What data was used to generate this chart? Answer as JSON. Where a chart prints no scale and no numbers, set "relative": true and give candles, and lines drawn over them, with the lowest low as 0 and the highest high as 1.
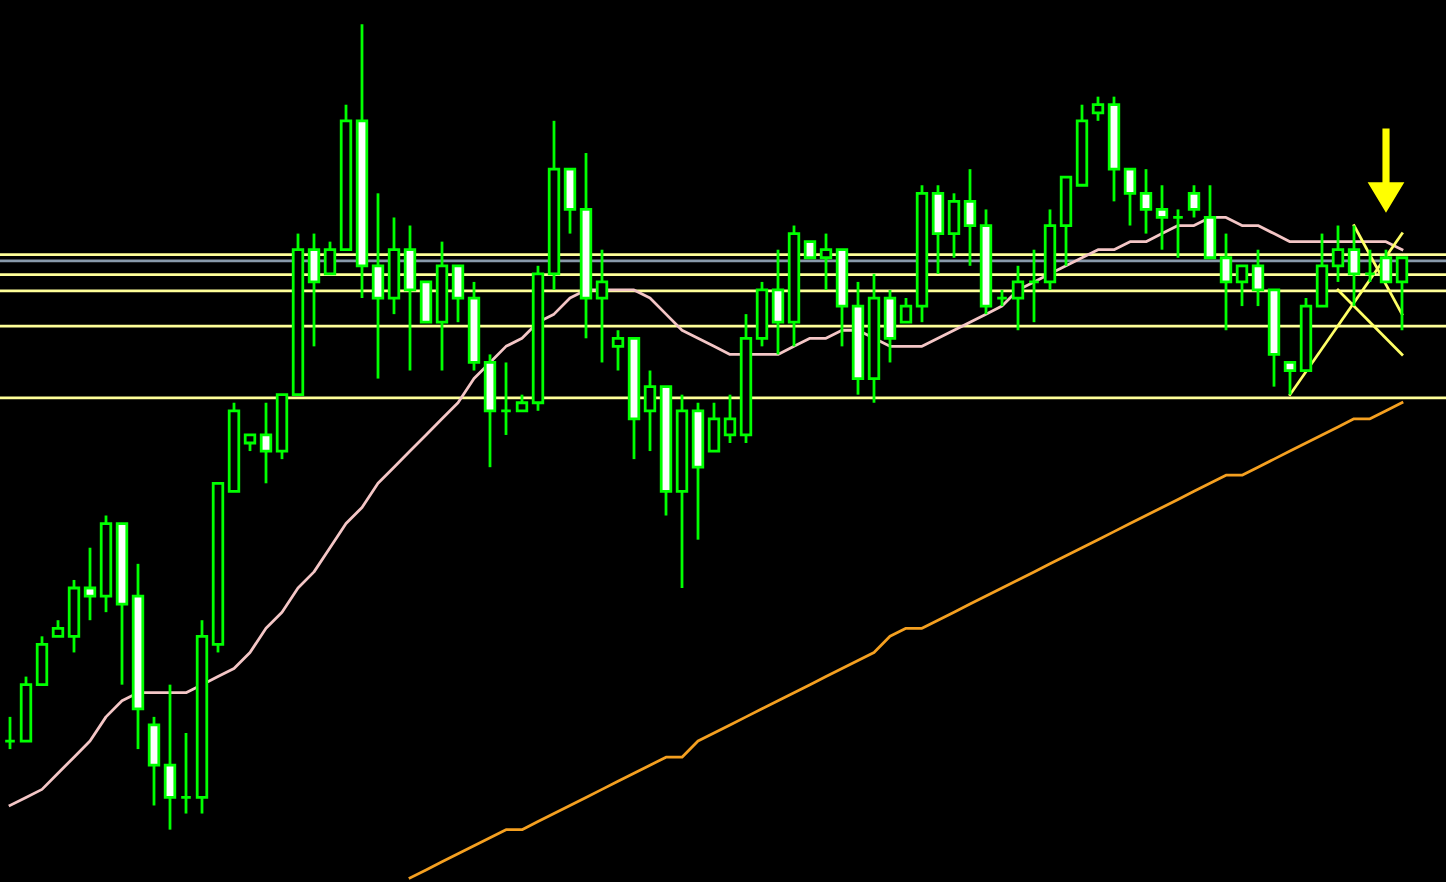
{
  "chart_data": {
    "type": "candlestick",
    "relative": true,
    "color": "#00ff00",
    "grid": false,
    "legend": false,
    "categories": [
      null,
      null,
      null,
      null,
      null,
      null,
      null,
      null,
      null,
      null,
      null,
      null,
      null,
      null,
      null,
      null,
      null,
      null,
      null,
      null,
      null,
      null,
      null,
      null,
      null,
      null,
      null,
      null,
      null,
      null,
      null,
      null,
      null,
      null,
      null,
      null,
      null,
      null,
      null,
      null,
      null,
      null,
      null,
      null,
      null,
      null,
      null,
      null,
      null,
      null,
      null,
      null,
      null,
      null,
      null,
      null,
      null,
      null,
      null,
      null,
      null,
      null,
      null,
      null,
      null,
      null,
      null,
      null,
      null,
      null,
      null,
      null,
      null,
      null,
      null,
      null,
      null,
      null,
      null,
      null,
      null,
      null,
      null,
      null,
      null,
      null,
      null,
      null
    ],
    "ohlc": [
      [
        0.11,
        0.14,
        0.1,
        0.11
      ],
      [
        0.11,
        0.19,
        0.11,
        0.18
      ],
      [
        0.18,
        0.24,
        0.18,
        0.23
      ],
      [
        0.24,
        0.26,
        0.24,
        0.25
      ],
      [
        0.24,
        0.31,
        0.22,
        0.3
      ],
      [
        0.3,
        0.35,
        0.26,
        0.29
      ],
      [
        0.29,
        0.39,
        0.27,
        0.38
      ],
      [
        0.38,
        0.38,
        0.18,
        0.28
      ],
      [
        0.29,
        0.33,
        0.1,
        0.15
      ],
      [
        0.13,
        0.14,
        0.03,
        0.08
      ],
      [
        0.08,
        0.18,
        0,
        0.04
      ],
      [
        0.04,
        0.12,
        0.02,
        0.04
      ],
      [
        0.04,
        0.26,
        0.02,
        0.24
      ],
      [
        0.23,
        0.43,
        0.22,
        0.43
      ],
      [
        0.42,
        0.53,
        0.42,
        0.52
      ],
      [
        0.48,
        0.49,
        0.47,
        0.49
      ],
      [
        0.49,
        0.53,
        0.43,
        0.47
      ],
      [
        0.47,
        0.54,
        0.46,
        0.54
      ],
      [
        0.54,
        0.74,
        0.54,
        0.72
      ],
      [
        0.72,
        0.74,
        0.6,
        0.68
      ],
      [
        0.69,
        0.73,
        0.69,
        0.72
      ],
      [
        0.72,
        0.9,
        0.72,
        0.88
      ],
      [
        0.88,
        1,
        0.66,
        0.7
      ],
      [
        0.7,
        0.79,
        0.56,
        0.66
      ],
      [
        0.66,
        0.76,
        0.64,
        0.72
      ],
      [
        0.72,
        0.75,
        0.57,
        0.67
      ],
      [
        0.68,
        0.68,
        0.63,
        0.63
      ],
      [
        0.63,
        0.73,
        0.57,
        0.7
      ],
      [
        0.7,
        0.7,
        0.63,
        0.66
      ],
      [
        0.66,
        0.68,
        0.57,
        0.58
      ],
      [
        0.58,
        0.59,
        0.45,
        0.52
      ],
      [
        0.52,
        0.58,
        0.49,
        0.52
      ],
      [
        0.52,
        0.54,
        0.52,
        0.53
      ],
      [
        0.53,
        0.7,
        0.52,
        0.69
      ],
      [
        0.69,
        0.88,
        0.67,
        0.82
      ],
      [
        0.82,
        0.82,
        0.74,
        0.77
      ],
      [
        0.77,
        0.84,
        0.61,
        0.66
      ],
      [
        0.66,
        0.72,
        0.58,
        0.68
      ],
      [
        0.6,
        0.62,
        0.57,
        0.61
      ],
      [
        0.61,
        0.61,
        0.46,
        0.51
      ],
      [
        0.52,
        0.57,
        0.47,
        0.55
      ],
      [
        0.55,
        0.55,
        0.39,
        0.42
      ],
      [
        0.42,
        0.54,
        0.3,
        0.52
      ],
      [
        0.52,
        0.53,
        0.36,
        0.45
      ],
      [
        0.47,
        0.53,
        0.47,
        0.51
      ],
      [
        0.49,
        0.54,
        0.48,
        0.51
      ],
      [
        0.49,
        0.64,
        0.48,
        0.61
      ],
      [
        0.61,
        0.68,
        0.6,
        0.67
      ],
      [
        0.67,
        0.72,
        0.59,
        0.63
      ],
      [
        0.63,
        0.75,
        0.6,
        0.74
      ],
      [
        0.73,
        0.73,
        0.71,
        0.71
      ],
      [
        0.71,
        0.74,
        0.67,
        0.72
      ],
      [
        0.72,
        0.72,
        0.6,
        0.65
      ],
      [
        0.65,
        0.68,
        0.54,
        0.56
      ],
      [
        0.56,
        0.69,
        0.53,
        0.66
      ],
      [
        0.66,
        0.67,
        0.58,
        0.61
      ],
      [
        0.63,
        0.66,
        0.63,
        0.65
      ],
      [
        0.65,
        0.8,
        0.63,
        0.79
      ],
      [
        0.79,
        0.8,
        0.69,
        0.74
      ],
      [
        0.74,
        0.79,
        0.71,
        0.78
      ],
      [
        0.78,
        0.82,
        0.7,
        0.75
      ],
      [
        0.75,
        0.77,
        0.64,
        0.65
      ],
      [
        0.66,
        0.67,
        0.65,
        0.66
      ],
      [
        0.66,
        0.7,
        0.62,
        0.68
      ],
      [
        0.68,
        0.72,
        0.63,
        0.68
      ],
      [
        0.68,
        0.77,
        0.67,
        0.75
      ],
      [
        0.75,
        0.81,
        0.7,
        0.81
      ],
      [
        0.8,
        0.9,
        0.8,
        0.88
      ],
      [
        0.89,
        0.91,
        0.88,
        0.9
      ],
      [
        0.9,
        0.91,
        0.78,
        0.82
      ],
      [
        0.82,
        0.82,
        0.75,
        0.79
      ],
      [
        0.79,
        0.82,
        0.74,
        0.77
      ],
      [
        0.77,
        0.8,
        0.72,
        0.76
      ],
      [
        0.76,
        0.77,
        0.71,
        0.76
      ],
      [
        0.79,
        0.8,
        0.76,
        0.77
      ],
      [
        0.76,
        0.8,
        0.71,
        0.71
      ],
      [
        0.71,
        0.74,
        0.62,
        0.68
      ],
      [
        0.68,
        0.7,
        0.65,
        0.7
      ],
      [
        0.7,
        0.72,
        0.65,
        0.67
      ],
      [
        0.67,
        0.67,
        0.55,
        0.59
      ],
      [
        0.58,
        0.58,
        0.54,
        0.57
      ],
      [
        0.57,
        0.66,
        0.57,
        0.65
      ],
      [
        0.65,
        0.74,
        0.65,
        0.7
      ],
      [
        0.7,
        0.75,
        0.68,
        0.72
      ],
      [
        0.72,
        0.75,
        0.65,
        0.69
      ],
      [
        0.69,
        0.72,
        0.68,
        0.69
      ],
      [
        0.71,
        0.72,
        0.68,
        0.68
      ],
      [
        0.68,
        0.71,
        0.62,
        0.71
      ]
    ],
    "series": [
      {
        "type": "line",
        "color": "#f4c6c6",
        "values": [
          0.03,
          0.04,
          0.05,
          0.07,
          0.09,
          0.11,
          0.14,
          0.16,
          0.17,
          0.17,
          0.17,
          0.17,
          0.18,
          0.19,
          0.2,
          0.22,
          0.25,
          0.27,
          0.3,
          0.32,
          0.35,
          0.38,
          0.4,
          0.43,
          0.45,
          0.47,
          0.49,
          0.51,
          0.53,
          0.56,
          0.58,
          0.6,
          0.61,
          0.63,
          0.64,
          0.66,
          0.67,
          0.67,
          0.67,
          0.67,
          0.66,
          0.64,
          0.62,
          0.61,
          0.6,
          0.59,
          0.59,
          0.59,
          0.59,
          0.6,
          0.61,
          0.61,
          0.62,
          0.62,
          0.61,
          0.6,
          0.6,
          0.6,
          0.61,
          0.62,
          0.63,
          0.64,
          0.65,
          0.67,
          0.68,
          0.69,
          0.7,
          0.71,
          0.72,
          0.72,
          0.73,
          0.73,
          0.74,
          0.75,
          0.75,
          0.76,
          0.76,
          0.75,
          0.75,
          0.74,
          0.73,
          0.73,
          0.73,
          0.73,
          0.73,
          0.73,
          0.73,
          0.72
        ]
      },
      {
        "type": "line",
        "color": "#f5a020",
        "values": [
          null,
          null,
          null,
          null,
          null,
          null,
          null,
          null,
          null,
          null,
          null,
          null,
          null,
          null,
          null,
          null,
          null,
          null,
          null,
          null,
          null,
          null,
          null,
          null,
          null,
          -0.06,
          -0.05,
          -0.04,
          -0.03,
          -0.02,
          -0.01,
          0,
          0,
          0.01,
          0.02,
          0.03,
          0.04,
          0.05,
          0.06,
          0.07,
          0.08,
          0.09,
          0.09,
          0.11,
          0.12,
          0.13,
          0.14,
          0.15,
          0.16,
          0.17,
          0.18,
          0.19,
          0.2,
          0.21,
          0.22,
          0.24,
          0.25,
          0.25,
          0.26,
          0.27,
          0.28,
          0.29,
          0.3,
          0.31,
          0.32,
          0.33,
          0.34,
          0.35,
          0.36,
          0.37,
          0.38,
          0.39,
          0.4,
          0.41,
          0.42,
          0.43,
          0.44,
          0.44,
          0.45,
          0.46,
          0.47,
          0.48,
          0.49,
          0.5,
          0.51,
          0.51,
          0.52,
          0.53
        ]
      },
      {
        "type": "line",
        "color": "#ffff66",
        "values": [
          null,
          null,
          null,
          null,
          null,
          null,
          null,
          null,
          null,
          null,
          null,
          null,
          null,
          null,
          null,
          null,
          null,
          null,
          null,
          null,
          null,
          null,
          null,
          null,
          null,
          null,
          null,
          null,
          null,
          null,
          null,
          null,
          null,
          null,
          null,
          null,
          null,
          null,
          null,
          null,
          null,
          null,
          null,
          null,
          null,
          null,
          null,
          null,
          null,
          null,
          null,
          null,
          null,
          null,
          null,
          null,
          null,
          null,
          null,
          null,
          null,
          null,
          null,
          null,
          null,
          null,
          null,
          null,
          null,
          null,
          null,
          null,
          null,
          null,
          null,
          null,
          null,
          null,
          null,
          null,
          0.54,
          null,
          null,
          null,
          null,
          null,
          null,
          0.74
        ]
      },
      {
        "type": "line",
        "color": "#ffff66",
        "values": [
          null,
          null,
          null,
          null,
          null,
          null,
          null,
          null,
          null,
          null,
          null,
          null,
          null,
          null,
          null,
          null,
          null,
          null,
          null,
          null,
          null,
          null,
          null,
          null,
          null,
          null,
          null,
          null,
          null,
          null,
          null,
          null,
          null,
          null,
          null,
          null,
          null,
          null,
          null,
          null,
          null,
          null,
          null,
          null,
          null,
          null,
          null,
          null,
          null,
          null,
          null,
          null,
          null,
          null,
          null,
          null,
          null,
          null,
          null,
          null,
          null,
          null,
          null,
          null,
          null,
          null,
          null,
          null,
          null,
          null,
          null,
          null,
          null,
          null,
          null,
          null,
          null,
          null,
          null,
          null,
          null,
          null,
          null,
          null,
          0.75,
          null,
          null,
          0.64
        ]
      },
      {
        "type": "line",
        "color": "#ffff66",
        "values": [
          null,
          null,
          null,
          null,
          null,
          null,
          null,
          null,
          null,
          null,
          null,
          null,
          null,
          null,
          null,
          null,
          null,
          null,
          null,
          null,
          null,
          null,
          null,
          null,
          null,
          null,
          null,
          null,
          null,
          null,
          null,
          null,
          null,
          null,
          null,
          null,
          null,
          null,
          null,
          null,
          null,
          null,
          null,
          null,
          null,
          null,
          null,
          null,
          null,
          null,
          null,
          null,
          null,
          null,
          null,
          null,
          null,
          null,
          null,
          null,
          null,
          null,
          null,
          null,
          null,
          null,
          null,
          null,
          null,
          null,
          null,
          null,
          null,
          null,
          null,
          null,
          null,
          null,
          null,
          null,
          null,
          null,
          null,
          0.67,
          null,
          null,
          null,
          0.59
        ]
      }
    ],
    "ref_lines": [
      {
        "axis": "y",
        "value": 0.714,
        "color": "#ffff99"
      },
      {
        "axis": "y",
        "value": 0.706,
        "color": "#8899aa"
      },
      {
        "axis": "y",
        "value": 0.689,
        "color": "#ffff99"
      },
      {
        "axis": "y",
        "value": 0.669,
        "color": "#ffff99"
      },
      {
        "axis": "y",
        "value": 0.625,
        "color": "#ffff99"
      },
      {
        "axis": "y",
        "value": 0.536,
        "color": "#ffff99"
      }
    ]
  }
}
